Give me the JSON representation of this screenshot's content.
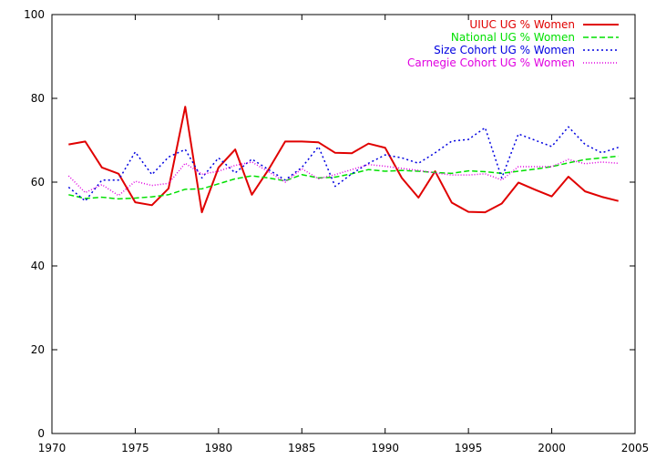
{
  "chart_data": {
    "type": "line",
    "title": "",
    "xlabel": "",
    "ylabel": "",
    "xlim": [
      1970,
      2005
    ],
    "ylim": [
      0,
      100
    ],
    "x_ticks": [
      "1970",
      "1975",
      "1980",
      "1985",
      "1990",
      "1995",
      "2000",
      "2005"
    ],
    "y_ticks": [
      "0",
      "20",
      "40",
      "60",
      "80",
      "100"
    ],
    "grid": false,
    "legend_position": "top-right",
    "x": [
      1971,
      1972,
      1973,
      1974,
      1975,
      1976,
      1977,
      1978,
      1979,
      1980,
      1981,
      1982,
      1983,
      1984,
      1985,
      1986,
      1987,
      1988,
      1989,
      1990,
      1991,
      1992,
      1993,
      1994,
      1995,
      1996,
      1997,
      1998,
      1999,
      2000,
      2001,
      2002,
      2003,
      2004
    ],
    "series": [
      {
        "name": "UIUC UG % Women",
        "color": "#e00000",
        "dash": "solid",
        "values": [
          69.0,
          69.7,
          63.5,
          62.0,
          55.2,
          54.5,
          58.5,
          78.0,
          52.8,
          63.5,
          67.8,
          57.0,
          63.0,
          69.7,
          69.7,
          69.5,
          67.0,
          66.9,
          69.2,
          68.2,
          61.0,
          56.3,
          62.6,
          55.1,
          52.9,
          52.8,
          54.9,
          59.9,
          58.2,
          56.6,
          61.3,
          57.8,
          56.5,
          55.5
        ]
      },
      {
        "name": "National UG % Women",
        "color": "#00e000",
        "dash": "dashed",
        "values": [
          57.0,
          56.1,
          56.4,
          56.0,
          56.2,
          56.5,
          57.0,
          58.3,
          58.4,
          59.6,
          60.8,
          61.5,
          61.0,
          60.3,
          61.8,
          61.0,
          61.2,
          62.0,
          63.0,
          62.6,
          62.8,
          62.6,
          62.3,
          62.1,
          62.7,
          62.5,
          62.1,
          62.6,
          63.1,
          63.7,
          64.6,
          65.4,
          65.8,
          66.2
        ]
      },
      {
        "name": "Size Cohort UG % Women",
        "color": "#0000e0",
        "dash": "dotted",
        "values": [
          58.8,
          55.5,
          60.5,
          60.5,
          67.2,
          61.8,
          66.0,
          67.8,
          61.0,
          65.8,
          62.2,
          65.5,
          63.0,
          60.5,
          63.5,
          68.5,
          59.0,
          62.0,
          64.5,
          66.5,
          65.8,
          64.5,
          67.0,
          69.8,
          70.2,
          73.0,
          61.0,
          71.5,
          70.0,
          68.5,
          73.2,
          69.0,
          67.0,
          68.3
        ]
      },
      {
        "name": "Carnegie Cohort UG % Women",
        "color": "#e000e0",
        "dash": "dotted-fine",
        "values": [
          61.5,
          57.5,
          59.4,
          56.8,
          60.2,
          59.2,
          59.7,
          64.5,
          61.9,
          62.6,
          64.0,
          64.8,
          62.5,
          60.0,
          63.2,
          60.8,
          61.8,
          63.0,
          64.2,
          63.8,
          63.3,
          62.8,
          62.2,
          61.7,
          61.7,
          62.0,
          60.5,
          63.7,
          63.7,
          63.7,
          65.4,
          64.4,
          64.8,
          64.5
        ]
      }
    ]
  }
}
